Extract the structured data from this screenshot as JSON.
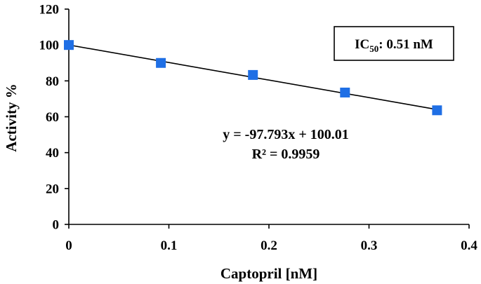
{
  "chart_data": {
    "type": "scatter",
    "xlabel": "Captopril [nM]",
    "ylabel": "Activity %",
    "xlim": [
      0,
      0.4
    ],
    "ylim": [
      0,
      120
    ],
    "xticks": [
      0,
      0.1,
      0.2,
      0.3,
      0.4
    ],
    "xtick_labels": [
      "0",
      "0.1",
      "0.2",
      "0.3",
      "0.4"
    ],
    "yticks": [
      0,
      20,
      40,
      60,
      80,
      100,
      120
    ],
    "ytick_labels": [
      "0",
      "20",
      "40",
      "60",
      "80",
      "100",
      "120"
    ],
    "grid": false,
    "series": [
      {
        "x": [
          0,
          0.092,
          0.184,
          0.276,
          0.368
        ],
        "y": [
          100,
          90,
          83.3,
          73.5,
          63.6
        ],
        "color": "#1f6fe5",
        "marker": "square"
      }
    ],
    "trendline": {
      "slope": -97.793,
      "intercept": 100.01,
      "x_range": [
        0,
        0.368
      ],
      "color": "#000000"
    },
    "annotations": {
      "equation": "y = -97.793x + 100.01",
      "r_squared": "R² = 0.9959",
      "ic50_prefix": "IC",
      "ic50_sub": "50",
      "ic50_value": ": 0.51 nM"
    }
  }
}
